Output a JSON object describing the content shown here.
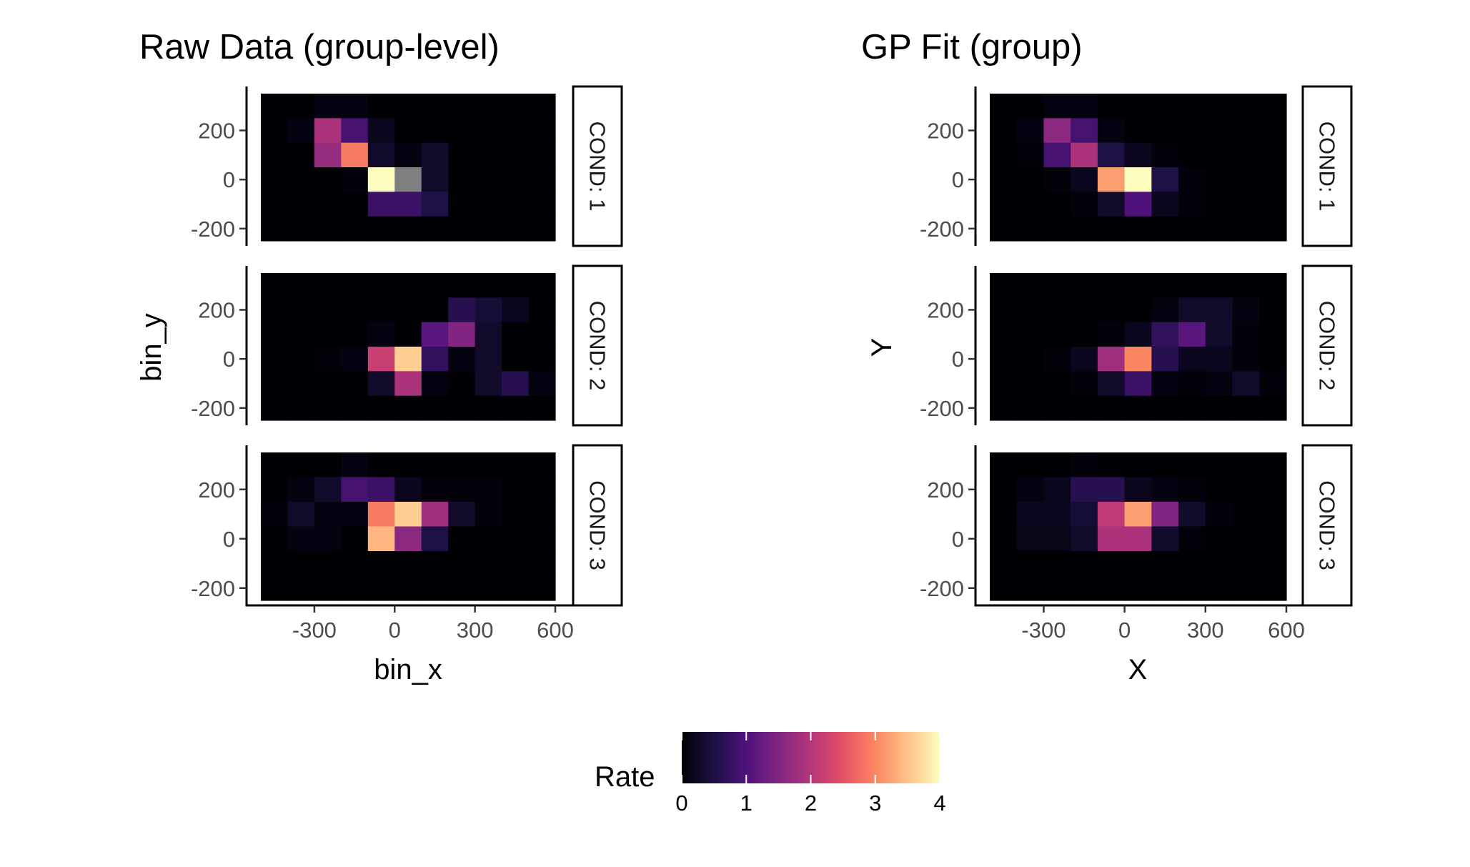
{
  "chart_data": [
    {
      "type": "heatmap",
      "title": "Raw Data (group-level)",
      "xlabel": "bin_x",
      "ylabel": "bin_y",
      "xlim": [
        -500,
        600
      ],
      "ylim": [
        -250,
        350
      ],
      "x_ticks": [
        -300,
        0,
        300,
        600
      ],
      "y_ticks": [
        -200,
        0,
        200
      ],
      "x_centers": [
        -450,
        -350,
        -250,
        -150,
        -50,
        50,
        150,
        250,
        350,
        450,
        550
      ],
      "y_centers": [
        300,
        200,
        100,
        0,
        -100,
        -200
      ],
      "missing_color": "#7f7f7f",
      "facets": [
        {
          "label": "COND: 1",
          "values": [
            [
              0,
              0,
              0.1,
              0.1,
              0,
              0,
              0,
              0,
              0,
              0,
              0
            ],
            [
              0,
              0.1,
              1.9,
              0.9,
              0.2,
              0,
              0,
              0,
              0,
              0,
              0
            ],
            [
              0,
              0,
              1.7,
              2.9,
              0.3,
              0.1,
              0.3,
              0,
              0,
              0,
              0
            ],
            [
              0,
              0,
              0,
              0.05,
              4.0,
              null,
              0.3,
              0,
              0,
              0,
              0
            ],
            [
              0,
              0,
              0,
              0,
              0.8,
              0.8,
              0.5,
              0,
              0,
              0,
              0
            ],
            [
              0,
              0,
              0,
              0,
              0,
              0,
              0,
              0,
              0,
              0,
              0
            ]
          ]
        },
        {
          "label": "COND: 2",
          "values": [
            [
              0,
              0,
              0,
              0,
              0,
              0,
              0,
              0,
              0,
              0,
              0
            ],
            [
              0,
              0,
              0,
              0,
              0,
              0,
              0,
              0.6,
              0.4,
              0.2,
              0
            ],
            [
              0,
              0,
              0,
              0,
              0.1,
              0,
              1.1,
              1.5,
              0.3,
              0,
              0
            ],
            [
              0,
              0,
              0.05,
              0.1,
              2.2,
              3.6,
              0.7,
              0.1,
              0.3,
              0,
              0
            ],
            [
              0,
              0,
              0,
              0,
              0.3,
              1.9,
              0.1,
              0,
              0.3,
              0.6,
              0.1
            ],
            [
              0,
              0,
              0,
              0,
              0,
              0,
              0,
              0,
              0,
              0,
              0
            ]
          ]
        },
        {
          "label": "COND: 3",
          "values": [
            [
              0,
              0,
              0,
              0.1,
              0,
              0,
              0,
              0,
              0,
              0,
              0
            ],
            [
              0,
              0.1,
              0.3,
              0.9,
              0.8,
              0.2,
              0.05,
              0.05,
              0.05,
              0,
              0
            ],
            [
              0.05,
              0.3,
              0.1,
              0.1,
              2.9,
              3.6,
              1.8,
              0.3,
              0.05,
              0,
              0
            ],
            [
              0,
              0.1,
              0.1,
              0,
              3.4,
              1.6,
              0.5,
              0,
              0,
              0,
              0
            ],
            [
              0,
              0,
              0,
              0,
              0,
              0,
              0,
              0,
              0,
              0,
              0
            ],
            [
              0,
              0,
              0,
              0,
              0,
              0,
              0,
              0,
              0,
              0,
              0
            ]
          ]
        }
      ]
    },
    {
      "type": "heatmap",
      "title": "GP Fit (group)",
      "xlabel": "X",
      "ylabel": "Y",
      "xlim": [
        -500,
        600
      ],
      "ylim": [
        -250,
        350
      ],
      "x_ticks": [
        -300,
        0,
        300,
        600
      ],
      "y_ticks": [
        -200,
        0,
        200
      ],
      "x_centers": [
        -450,
        -350,
        -250,
        -150,
        -50,
        50,
        150,
        250,
        350,
        450,
        550
      ],
      "y_centers": [
        300,
        200,
        100,
        0,
        -100,
        -200
      ],
      "facets": [
        {
          "label": "COND: 1",
          "values": [
            [
              0,
              0,
              0.1,
              0.1,
              0,
              0,
              0,
              0,
              0,
              0,
              0
            ],
            [
              0,
              0.1,
              1.6,
              0.9,
              0.1,
              0,
              0,
              0,
              0,
              0,
              0
            ],
            [
              0,
              0.05,
              0.9,
              1.9,
              0.5,
              0.2,
              0.05,
              0,
              0,
              0,
              0
            ],
            [
              0,
              0,
              0.05,
              0.2,
              3.2,
              4.0,
              0.5,
              0.05,
              0,
              0,
              0
            ],
            [
              0,
              0,
              0,
              0.05,
              0.3,
              1.0,
              0.2,
              0.05,
              0,
              0,
              0
            ],
            [
              0,
              0,
              0,
              0,
              0,
              0,
              0,
              0,
              0,
              0,
              0
            ]
          ]
        },
        {
          "label": "COND: 2",
          "values": [
            [
              0,
              0,
              0,
              0,
              0,
              0,
              0,
              0,
              0,
              0,
              0
            ],
            [
              0,
              0,
              0,
              0,
              0,
              0,
              0.1,
              0.3,
              0.3,
              0.1,
              0
            ],
            [
              0,
              0,
              0,
              0,
              0.05,
              0.2,
              0.7,
              1.1,
              0.3,
              0.05,
              0
            ],
            [
              0,
              0,
              0.05,
              0.2,
              1.8,
              3.0,
              0.6,
              0.2,
              0.2,
              0.05,
              0
            ],
            [
              0,
              0,
              0,
              0.05,
              0.3,
              0.8,
              0.1,
              0.05,
              0.1,
              0.3,
              0.05
            ],
            [
              0,
              0,
              0,
              0,
              0,
              0,
              0,
              0,
              0,
              0,
              0
            ]
          ]
        },
        {
          "label": "COND: 3",
          "values": [
            [
              0,
              0,
              0,
              0.05,
              0,
              0,
              0,
              0,
              0,
              0,
              0
            ],
            [
              0,
              0.1,
              0.2,
              0.6,
              0.6,
              0.2,
              0.1,
              0.05,
              0,
              0,
              0
            ],
            [
              0,
              0.2,
              0.2,
              0.4,
              2.1,
              3.2,
              1.5,
              0.3,
              0.05,
              0,
              0
            ],
            [
              0,
              0.15,
              0.15,
              0.3,
              1.9,
              1.9,
              0.3,
              0.05,
              0,
              0,
              0
            ],
            [
              0,
              0,
              0,
              0,
              0,
              0,
              0,
              0,
              0,
              0,
              0
            ],
            [
              0,
              0,
              0,
              0,
              0,
              0,
              0,
              0,
              0,
              0,
              0
            ]
          ]
        }
      ]
    }
  ],
  "legend": {
    "title": "Rate",
    "ticks": [
      0,
      1,
      2,
      3,
      4
    ],
    "colormap": "magma",
    "range": [
      0,
      4
    ]
  }
}
